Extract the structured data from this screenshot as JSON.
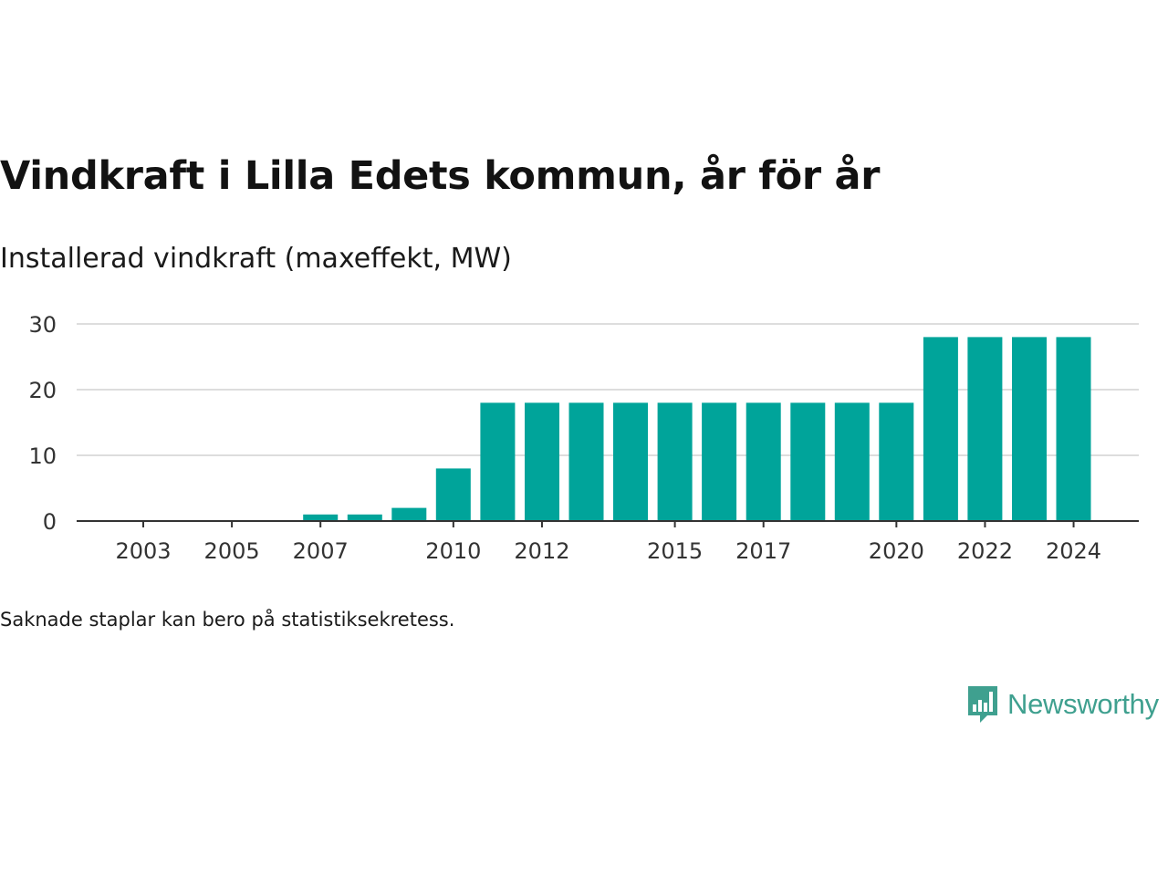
{
  "header": {
    "title": "Vindkraft i Lilla Edets kommun, år för år",
    "subtitle": "Installerad vindkraft (maxeffekt, MW)"
  },
  "footer": {
    "note": "Saknade staplar kan bero på statistiksekretess."
  },
  "brand": {
    "name": "Newsworthy",
    "logo_icon": "newsworthy-logo-icon",
    "color": "#3fa08f"
  },
  "colors": {
    "bar": "#00a49a",
    "grid": "#dddddd",
    "axis": "#333333",
    "tick_text": "#333333"
  },
  "chart_data": {
    "type": "bar",
    "categories": [
      "2003",
      "2004",
      "2005",
      "2006",
      "2007",
      "2008",
      "2009",
      "2010",
      "2011",
      "2012",
      "2013",
      "2014",
      "2015",
      "2016",
      "2017",
      "2018",
      "2019",
      "2020",
      "2021",
      "2022",
      "2023",
      "2024"
    ],
    "values": [
      0,
      0,
      0,
      0,
      1,
      1,
      2,
      8,
      18,
      18,
      18,
      18,
      18,
      18,
      18,
      18,
      18,
      18,
      28,
      28,
      28,
      28
    ],
    "x_tick_labels": [
      "2003",
      "2005",
      "2007",
      "2010",
      "2012",
      "2015",
      "2017",
      "2020",
      "2022",
      "2024"
    ],
    "y_ticks": [
      0,
      10,
      20,
      30
    ],
    "ylim": [
      0,
      30
    ],
    "xlabel": "",
    "ylabel": "",
    "grid": true,
    "legend": "none"
  }
}
